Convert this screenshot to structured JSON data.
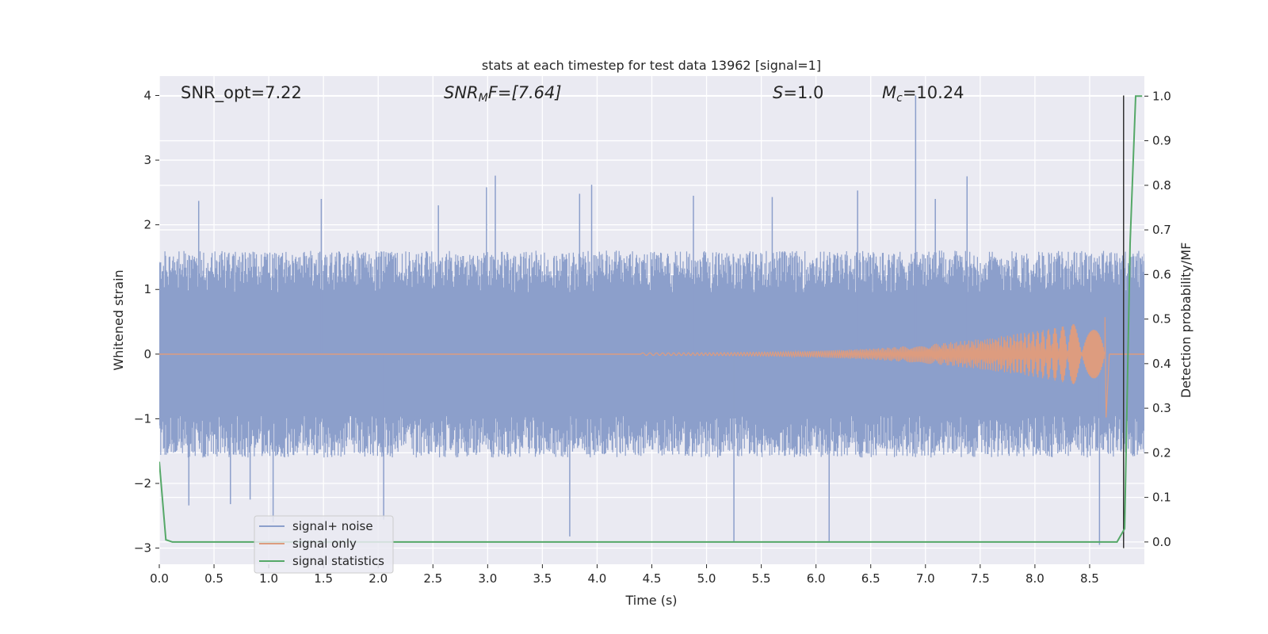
{
  "chart_data": {
    "type": "line",
    "title": "stats at each timestep for test data 13962 [signal=1]",
    "xlabel": "Time (s)",
    "ylabel": "Whitened strain",
    "ylabel_right": "Detection probability/MF",
    "xlim": [
      0.0,
      9.0
    ],
    "ylim": [
      -3.25,
      4.3
    ],
    "ylim_right": [
      -0.05,
      1.045
    ],
    "x_ticks": [
      "0.0",
      "0.5",
      "1.0",
      "1.5",
      "2.0",
      "2.5",
      "3.0",
      "3.5",
      "4.0",
      "4.5",
      "5.0",
      "5.5",
      "6.0",
      "6.5",
      "7.0",
      "7.5",
      "8.0",
      "8.5"
    ],
    "y_ticks": [
      "−3",
      "−2",
      "−1",
      "0",
      "1",
      "2",
      "3",
      "4"
    ],
    "y_ticks_right": [
      "0.0",
      "0.1",
      "0.2",
      "0.3",
      "0.4",
      "0.5",
      "0.6",
      "0.7",
      "0.8",
      "0.9",
      "1.0"
    ],
    "grid": true,
    "legend_placement": "lower-left",
    "annotations": {
      "snr_opt": "SNR_opt=7.22",
      "snr_mf_base": "SNR",
      "snr_mf_sub": "M",
      "snr_mf_rest": "F=[7.64]",
      "s_label": "S",
      "s_value": "=1.0",
      "mc_base": "M",
      "mc_sub": "c",
      "mc_value": "=10.24"
    },
    "series": [
      {
        "name": "signal+ noise",
        "color": "#8c9fcb",
        "axis": "left",
        "description_values": "noise envelope",
        "x_start": 0.0,
        "x_end": 9.0,
        "typical_range": [
          -1.6,
          1.6
        ],
        "spikes": [
          {
            "x": 0.27,
            "y": -2.34
          },
          {
            "x": 0.36,
            "y": 2.37
          },
          {
            "x": 0.65,
            "y": -2.32
          },
          {
            "x": 0.83,
            "y": -2.25
          },
          {
            "x": 1.04,
            "y": -2.6
          },
          {
            "x": 1.48,
            "y": 2.4
          },
          {
            "x": 2.05,
            "y": -2.56
          },
          {
            "x": 2.55,
            "y": 2.3
          },
          {
            "x": 2.99,
            "y": 2.58
          },
          {
            "x": 3.07,
            "y": 2.76
          },
          {
            "x": 3.75,
            "y": -2.82
          },
          {
            "x": 3.84,
            "y": 2.48
          },
          {
            "x": 3.95,
            "y": 2.62
          },
          {
            "x": 4.88,
            "y": 2.45
          },
          {
            "x": 5.25,
            "y": -2.9
          },
          {
            "x": 5.6,
            "y": 2.43
          },
          {
            "x": 6.12,
            "y": -2.9
          },
          {
            "x": 6.38,
            "y": 2.53
          },
          {
            "x": 6.91,
            "y": 4.0
          },
          {
            "x": 7.09,
            "y": 2.4
          },
          {
            "x": 7.38,
            "y": 2.75
          },
          {
            "x": 8.59,
            "y": -2.95
          }
        ]
      },
      {
        "name": "signal only",
        "color": "#dd9c7f",
        "axis": "left",
        "chirp": {
          "x_start": 4.4,
          "x_peak": 8.64,
          "x_end": 8.68,
          "amp_start": 0.02,
          "amp_peak": 0.57,
          "amp_peak_neg": -0.98
        }
      },
      {
        "name": "signal statistics",
        "color": "#55a868",
        "axis": "right",
        "x": [
          0.0,
          0.06,
          0.12,
          8.75,
          8.82,
          8.87,
          8.92,
          8.98
        ],
        "y": [
          0.18,
          0.005,
          0.0,
          0.0,
          0.03,
          0.67,
          1.0,
          1.0
        ]
      }
    ],
    "marker_line": {
      "x": 8.81,
      "y_from": -3.0,
      "y_to": 4.0,
      "color": "#333333"
    }
  }
}
